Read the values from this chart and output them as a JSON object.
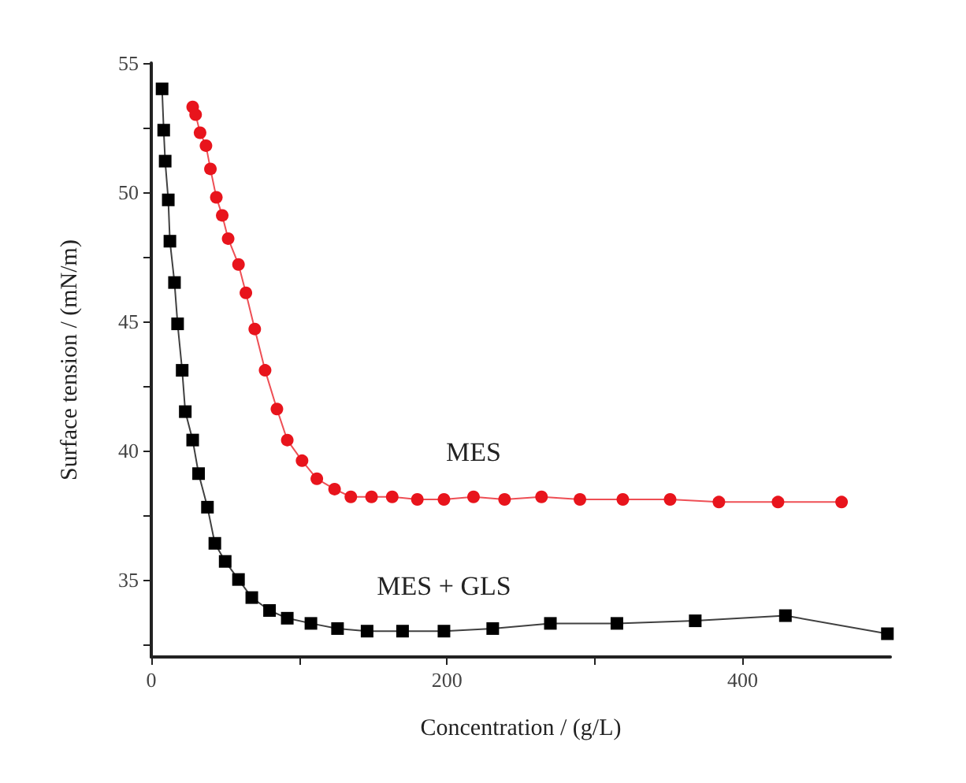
{
  "chart_data": {
    "type": "line",
    "xlabel": "Concentration / (g/L)",
    "ylabel": "Surface tension / (mN/m)",
    "xlim": [
      0,
      500
    ],
    "xticks": [
      0,
      {
        "value": 100,
        "label": null
      },
      200,
      {
        "value": 300,
        "label": null
      },
      400
    ],
    "ylim": [
      32,
      55
    ],
    "yticks": [
      {
        "value": 32.5,
        "label": null
      },
      35,
      {
        "value": 37.5,
        "label": null
      },
      40,
      {
        "value": 42.5,
        "label": null
      },
      45,
      {
        "value": 47.5,
        "label": null
      },
      50,
      {
        "value": 52.5,
        "label": null
      },
      55
    ],
    "grid": false,
    "legend": false,
    "line_style": "solid",
    "series": [
      {
        "name": "MES",
        "color": "#e8141c",
        "marker": "circle",
        "x": [
          28,
          30,
          33,
          37,
          40,
          44,
          48,
          52,
          59,
          64,
          70,
          77,
          85,
          92,
          102,
          112,
          124,
          135,
          149,
          163,
          180,
          198,
          218,
          239,
          264,
          290,
          319,
          351,
          384,
          424,
          467
        ],
        "values": [
          53.3,
          53.0,
          52.3,
          51.8,
          50.9,
          49.8,
          49.1,
          48.2,
          47.2,
          46.1,
          44.7,
          43.1,
          41.6,
          40.4,
          39.6,
          38.9,
          38.5,
          38.2,
          38.2,
          38.2,
          38.1,
          38.1,
          38.2,
          38.1,
          38.2,
          38.1,
          38.1,
          38.1,
          38.0,
          38.0,
          38.0
        ]
      },
      {
        "name": "MES + GLS",
        "color": "#000000",
        "marker": "square",
        "x": [
          7.3,
          8.4,
          9.4,
          11.5,
          12.6,
          15.7,
          17.8,
          20.9,
          23,
          28,
          32,
          38,
          43,
          50,
          59,
          68,
          80,
          92,
          108,
          126,
          146,
          170,
          198,
          231,
          270,
          315,
          368,
          429,
          498
        ],
        "values": [
          54.0,
          52.4,
          51.2,
          49.7,
          48.1,
          46.5,
          44.9,
          43.1,
          41.5,
          40.4,
          39.1,
          37.8,
          36.4,
          35.7,
          35.0,
          34.3,
          33.8,
          33.5,
          33.3,
          33.1,
          33.0,
          33.0,
          33.0,
          33.1,
          33.3,
          33.3,
          33.4,
          33.6,
          32.9
        ]
      }
    ]
  }
}
